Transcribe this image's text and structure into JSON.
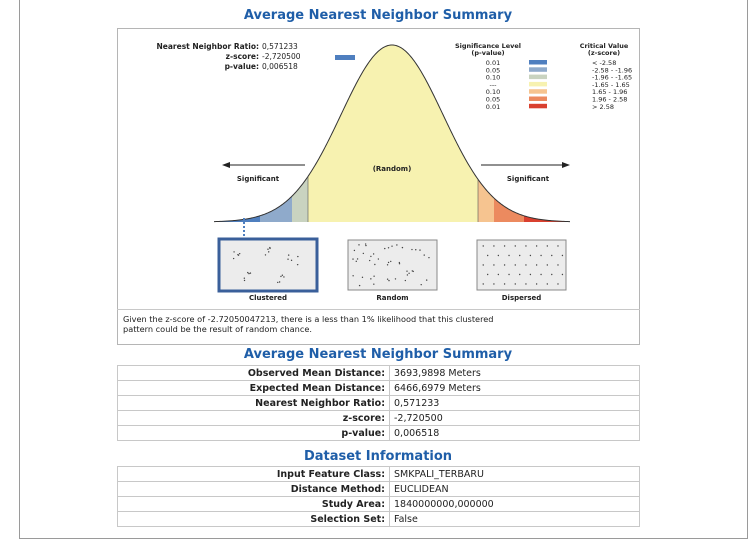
{
  "title": "Average Nearest Neighbor Summary",
  "graphic": {
    "stats": [
      {
        "label": "Nearest Neighbor Ratio:",
        "value": "0,571233"
      },
      {
        "label": "z-score:",
        "value": "-2,720500"
      },
      {
        "label": "p-value:",
        "value": "0,006518"
      }
    ],
    "legend": {
      "level_header": [
        "Significance Level",
        "(p-value)"
      ],
      "value_header": [
        "Critical Value",
        "(z-score)"
      ],
      "rows": [
        {
          "p": "0.01",
          "z": "< -2.58",
          "color": "#4f7fbf"
        },
        {
          "p": "0.05",
          "z": "-2.58 - -1.96",
          "color": "#8faacb"
        },
        {
          "p": "0.10",
          "z": "-1.96 - -1.65",
          "color": "#c9d3c0"
        },
        {
          "p": "---",
          "z": "-1.65 - 1.65",
          "color": "#f7f2b0"
        },
        {
          "p": "0.10",
          "z": "1.65 - 1.96",
          "color": "#f6c490"
        },
        {
          "p": "0.05",
          "z": "1.96 - 2.58",
          "color": "#ec8a5f"
        },
        {
          "p": "0.01",
          "z": "> 2.58",
          "color": "#d9402f"
        }
      ]
    },
    "curve_labels": [
      "Significant",
      "(Random)",
      "Significant"
    ],
    "patterns": [
      "Clustered",
      "Random",
      "Dispersed"
    ],
    "caption": [
      "Given the z-score of -2.72050047213, there is a less than 1% likelihood that this clustered",
      "pattern could be the result of random chance."
    ]
  },
  "summary": {
    "title": "Average Nearest Neighbor Summary",
    "rows": [
      [
        "Observed Mean Distance:",
        "3693,9898 Meters"
      ],
      [
        "Expected Mean Distance:",
        "6466,6979 Meters"
      ],
      [
        "Nearest Neighbor Ratio:",
        "0,571233"
      ],
      [
        "z-score:",
        "-2,720500"
      ],
      [
        "p-value:",
        "0,006518"
      ]
    ]
  },
  "dataset": {
    "title": "Dataset Information",
    "rows": [
      [
        "Input Feature Class:",
        "SMKPALI_TERBARU"
      ],
      [
        "Distance Method:",
        "EUCLIDEAN"
      ],
      [
        "Study Area:",
        "1840000000,000000"
      ],
      [
        "Selection Set:",
        "False"
      ]
    ]
  }
}
